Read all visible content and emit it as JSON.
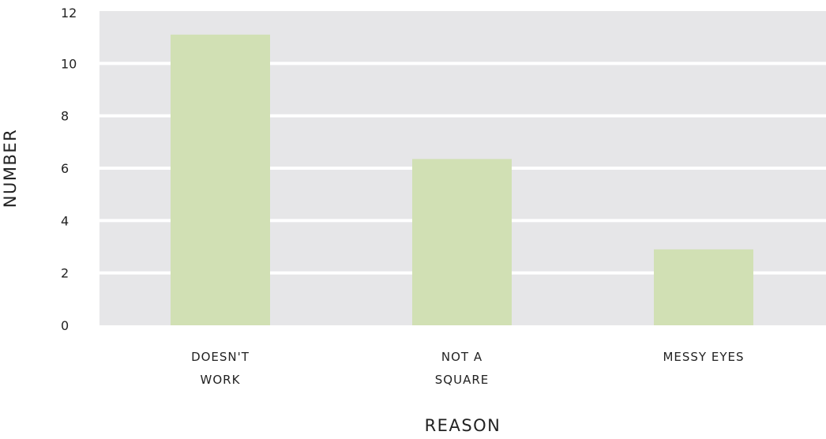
{
  "chart_data": {
    "type": "bar",
    "categories": [
      [
        "DOESN'T",
        "WORK"
      ],
      [
        "NOT A",
        "SQUARE"
      ],
      [
        "MESSY EYES"
      ]
    ],
    "values": [
      11.1,
      6.35,
      2.9
    ],
    "xlabel": "REASON",
    "ylabel": "NUMBER",
    "ylim": [
      0,
      12
    ],
    "yticks": [
      0,
      2,
      4,
      6,
      8,
      10,
      12
    ],
    "grid": true,
    "colors": {
      "bar": "#d1e0b4",
      "plot_background": "#e6e6e8",
      "gridline": "#ffffff",
      "text": "#222222"
    }
  }
}
